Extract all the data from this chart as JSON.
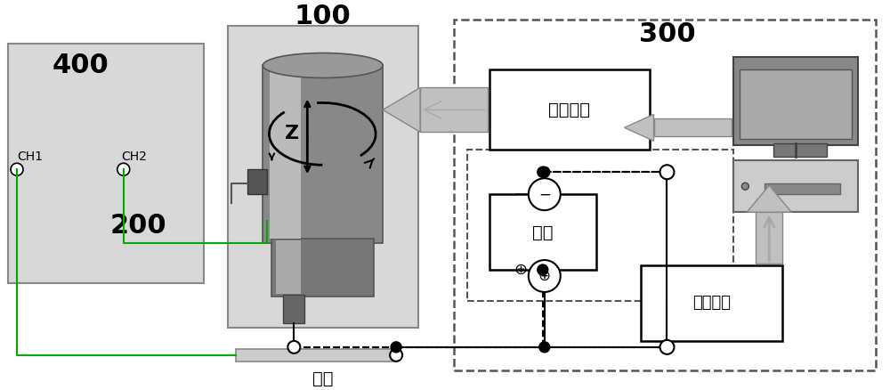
{
  "bg_color": "#ffffff",
  "fig_bg": "#f0f0f0",
  "label_100": "100",
  "label_300": "300",
  "label_400": "400",
  "label_200": "200",
  "label_ch1": "CH1",
  "label_ch2": "CH2",
  "label_yundong": "运动控制",
  "label_dianyuan": "电源",
  "label_fankui": "反馈信号",
  "label_gongji": "工件",
  "spindle_box_color": "#d0d0d0",
  "osc_box_color": "#d0d0d0",
  "motion_box_color": "#ffffff",
  "power_box_color": "#ffffff",
  "feedback_box_color": "#ffffff",
  "dashed_box_color": "#333333",
  "arrow_color": "#aaaaaa",
  "line_color": "#000000",
  "green_line_color": "#00aa00",
  "connector_color": "#cccccc"
}
